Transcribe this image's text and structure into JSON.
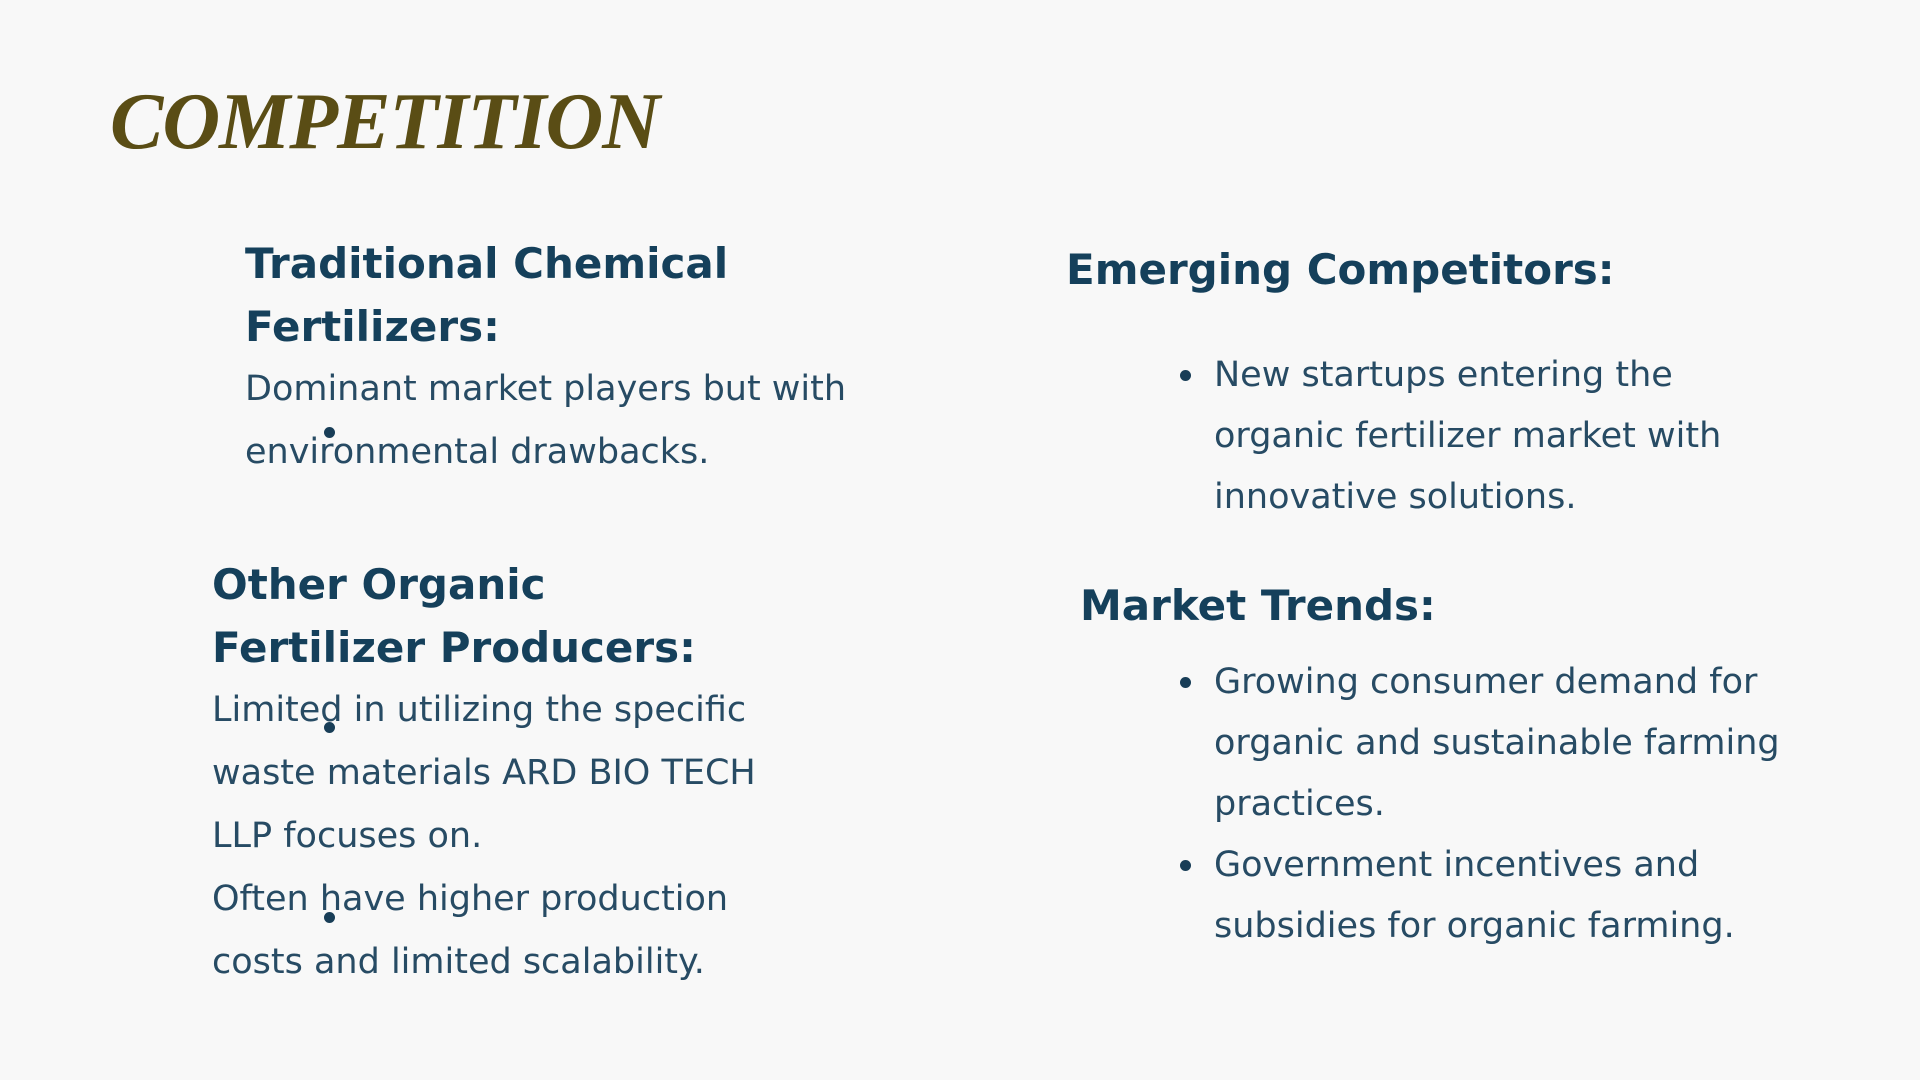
{
  "title": "COMPETITION",
  "left": {
    "traditional": {
      "heading": "Traditional Chemical Fertilizers:",
      "lines": [
        "Dominant market players but with environmental drawbacks."
      ]
    },
    "organic": {
      "heading": "Other Organic Fertilizer Producers:",
      "lines": [
        "Limited in utilizing the specific waste materials ARD BIO TECH LLP focuses on.",
        "Often have higher production costs and limited scalability."
      ]
    }
  },
  "right": {
    "emerging": {
      "heading": "Emerging Competitors:",
      "items": [
        "New startups entering the organic fertilizer market with innovative solutions."
      ]
    },
    "trends": {
      "heading": "Market Trends:",
      "items": [
        "Growing consumer demand for organic and sustainable farming practices.",
        "Government incentives and subsidies for organic farming."
      ]
    }
  },
  "colors": {
    "background": "#f8f8f8",
    "title": "#5a4d15",
    "heading": "#15405b",
    "body": "#274b64"
  }
}
